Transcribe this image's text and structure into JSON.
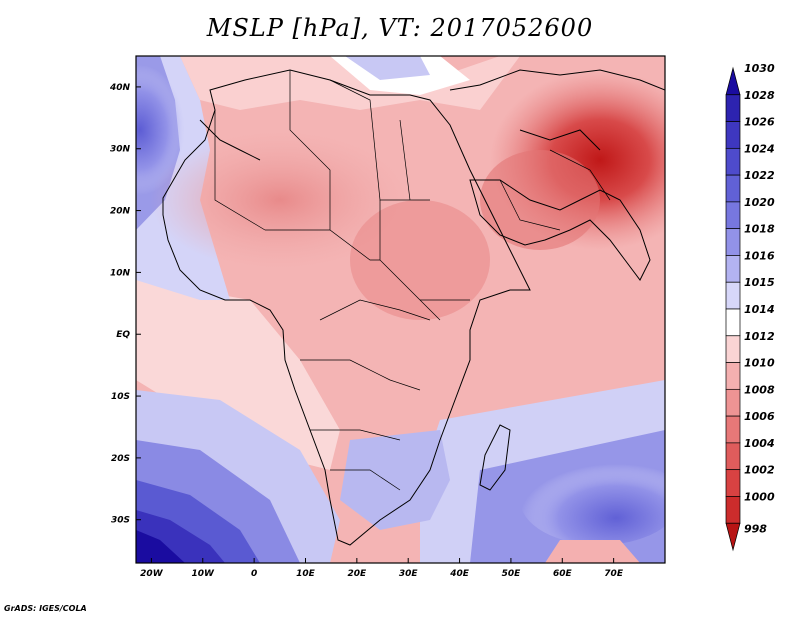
{
  "title": "MSLP [hPa], VT: 2017052600",
  "credit": "GrADS: IGES/COLA",
  "map": {
    "variable": "Mean sea level pressure",
    "units": "hPa",
    "valid_time": "2017052600",
    "region": "Africa, Middle East and Indian Ocean",
    "lon_range": [
      -23,
      80
    ],
    "lat_range": [
      -37,
      45
    ],
    "lon_ticks": [
      "20W",
      "10W",
      "0",
      "10E",
      "20E",
      "30E",
      "40E",
      "50E",
      "60E",
      "70E"
    ],
    "lon_tick_values": [
      -20,
      -10,
      0,
      10,
      20,
      30,
      40,
      50,
      60,
      70
    ],
    "lat_ticks": [
      "40N",
      "30N",
      "20N",
      "10N",
      "EQ",
      "10S",
      "20S",
      "30S"
    ],
    "lat_tick_values": [
      40,
      30,
      20,
      10,
      0,
      -10,
      -20,
      -30
    ]
  },
  "legend": {
    "labels": [
      "1030",
      "1028",
      "1026",
      "1024",
      "1022",
      "1020",
      "1018",
      "1016",
      "1015",
      "1014",
      "1012",
      "1010",
      "1008",
      "1006",
      "1004",
      "1002",
      "1000",
      "998"
    ],
    "colors": [
      "#1a0ca0",
      "#2d23b0",
      "#3e37c0",
      "#4e4bcc",
      "#6161d6",
      "#7777df",
      "#9292e8",
      "#b3b3f1",
      "#d7d7f9",
      "#ffffff",
      "#fad4d4",
      "#f4b0b0",
      "#ee9494",
      "#e77878",
      "#df5c5c",
      "#d84242",
      "#cc2c2c",
      "#b81414"
    ]
  }
}
